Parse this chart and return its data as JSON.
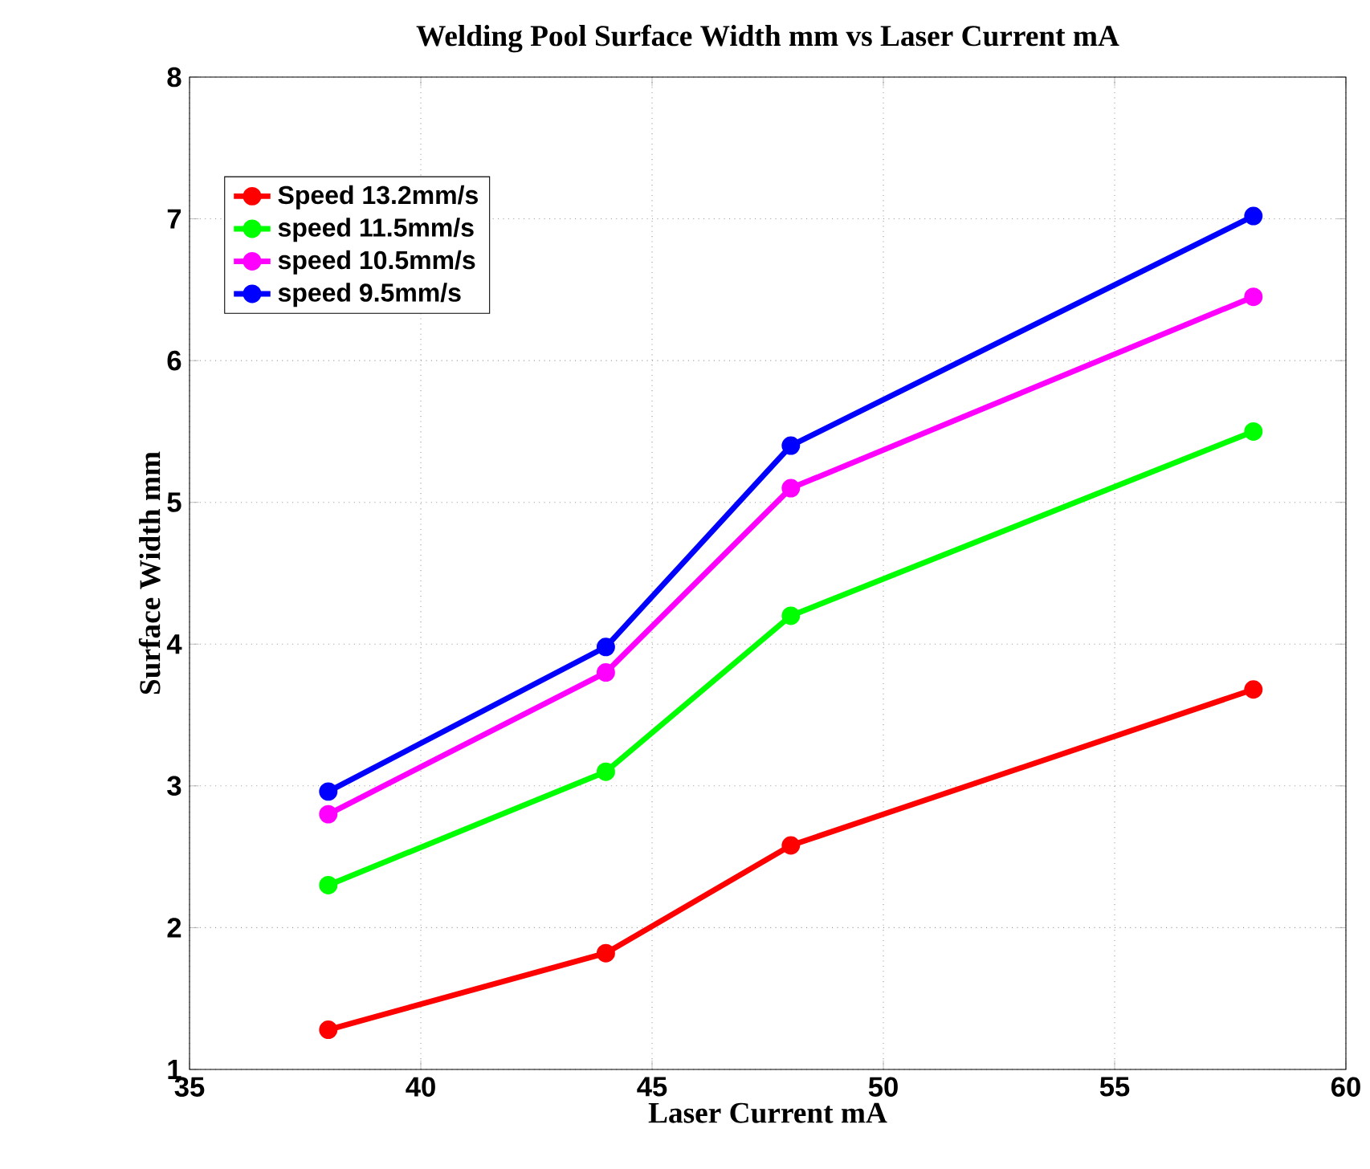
{
  "chart_data": {
    "type": "line",
    "title": "Welding Pool Surface Width mm vs Laser Current mA",
    "xlabel": "Laser Current mA",
    "ylabel": "Surface Width mm",
    "x": [
      38,
      44,
      48,
      58
    ],
    "series": [
      {
        "name": "Speed 13.2mm/s",
        "color": "#ff0000",
        "values": [
          1.28,
          1.82,
          2.58,
          3.68
        ]
      },
      {
        "name": "speed 11.5mm/s",
        "color": "#00ff00",
        "values": [
          2.3,
          3.1,
          4.2,
          5.5
        ]
      },
      {
        "name": "speed 10.5mm/s",
        "color": "#ff00ff",
        "values": [
          2.8,
          3.8,
          5.1,
          6.45
        ]
      },
      {
        "name": "speed 9.5mm/s",
        "color": "#0000ff",
        "values": [
          2.96,
          3.98,
          5.4,
          7.02
        ]
      }
    ],
    "xlim": [
      35,
      60
    ],
    "xticks": [
      35,
      40,
      45,
      50,
      55,
      60
    ],
    "ylim": [
      1,
      8
    ],
    "yticks": [
      1,
      2,
      3,
      4,
      5,
      6,
      7,
      8
    ],
    "grid": true,
    "legend": "top left",
    "marker": "circle",
    "line_style": "solid"
  }
}
